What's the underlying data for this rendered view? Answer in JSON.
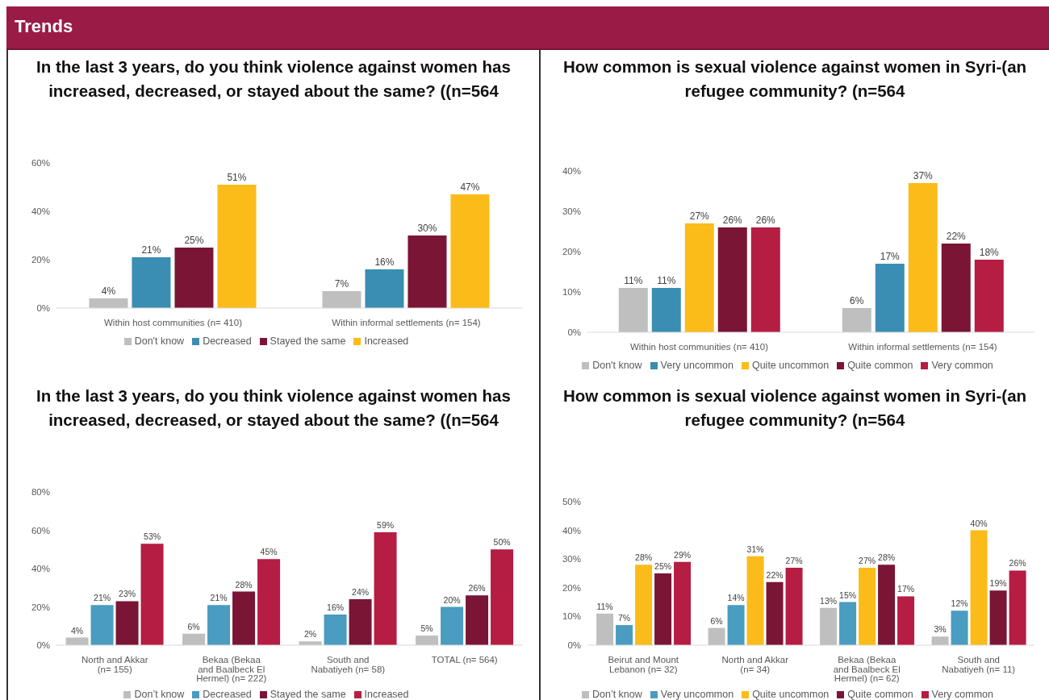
{
  "chart_data": [
    {
      "type": "other",
      "title": "Trends"
    },
    {
      "type": "bar",
      "title": "In the last 3 years, do you think violence against women has increased, decreased, or stayed about the same? ((n=564",
      "categories": [
        "Within host communities (n= 410)",
        "Within informal settlements (n= 154)"
      ],
      "series": [
        {
          "name": "Don't know",
          "color": "#bfbfbf",
          "values": [
            4,
            7
          ],
          "value_labels": [
            "4%",
            "7%"
          ]
        },
        {
          "name": "Decreased",
          "color": "#3a8db3",
          "values": [
            21,
            16
          ],
          "value_labels": [
            "21%",
            "16%"
          ]
        },
        {
          "name": "Stayed the same",
          "color": "#7b1535",
          "values": [
            25,
            30
          ],
          "value_labels": [
            "25%",
            "30%"
          ]
        },
        {
          "name": "Increased",
          "color": "#fbbc19",
          "values": [
            51,
            47
          ],
          "value_labels": [
            "51%",
            "47%"
          ]
        }
      ],
      "ylim": [
        0,
        60
      ],
      "yticks": [
        {
          "value": 0,
          "label": "0%"
        },
        {
          "value": 20,
          "label": "20%"
        },
        {
          "value": 40,
          "label": "40%"
        },
        {
          "value": 60,
          "label": "60%"
        }
      ],
      "legend": "bottom"
    },
    {
      "type": "bar",
      "title": "How common is sexual violence against women in Syri-(an refugee community? (n=564",
      "categories": [
        "Within host communities (n= 410)",
        "Within informal settlements (n= 154)"
      ],
      "series": [
        {
          "name": "Don't know",
          "color": "#bfbfbf",
          "values": [
            11,
            6
          ],
          "value_labels": [
            "11%",
            "6%"
          ]
        },
        {
          "name": "Very uncommon",
          "color": "#3a8db3",
          "values": [
            11,
            17
          ],
          "value_labels": [
            "11%",
            "17%"
          ]
        },
        {
          "name": "Quite uncommon",
          "color": "#fbbc19",
          "values": [
            27,
            37
          ],
          "value_labels": [
            "27%",
            "37%"
          ]
        },
        {
          "name": "Quite common",
          "color": "#7b1535",
          "values": [
            26,
            22
          ],
          "value_labels": [
            "26%",
            "22%"
          ]
        },
        {
          "name": "Very common",
          "color": "#b51d42",
          "values": [
            26,
            18
          ],
          "value_labels": [
            "26%",
            "18%"
          ]
        }
      ],
      "ylim": [
        0,
        40
      ],
      "yticks": [
        {
          "value": 0,
          "label": "0%"
        },
        {
          "value": 10,
          "label": "10%"
        },
        {
          "value": 20,
          "label": "20%"
        },
        {
          "value": 30,
          "label": "30%"
        },
        {
          "value": 40,
          "label": "40%"
        }
      ],
      "legend": "bottom"
    },
    {
      "type": "bar",
      "title": "In the last 3 years, do you think violence against women has increased, decreased, or stayed about the same? ((n=564",
      "categories": [
        "North and Akkar (n= 155)",
        "Bekaa (Bekaa and Baalbeck El Hermel) (n= 222)",
        "South and Nabatiyeh (n= 58)",
        "TOTAL (n= 564)"
      ],
      "series": [
        {
          "name": "Don’t know",
          "color": "#bfbfbf",
          "values": [
            4,
            6,
            2,
            5
          ],
          "value_labels": [
            "4%",
            "6%",
            "2%",
            "5%"
          ]
        },
        {
          "name": "Decreased",
          "color": "#4a9cc0",
          "values": [
            21,
            21,
            16,
            20
          ],
          "value_labels": [
            "21%",
            "21%",
            "16%",
            "20%"
          ]
        },
        {
          "name": "Stayed the same",
          "color": "#7b1535",
          "values": [
            23,
            28,
            24,
            26
          ],
          "value_labels": [
            "23%",
            "28%",
            "24%",
            "26%"
          ]
        },
        {
          "name": "Increased",
          "color": "#b51d42",
          "values": [
            53,
            45,
            59,
            50
          ],
          "value_labels": [
            "53%",
            "45%",
            "59%",
            "50%"
          ]
        }
      ],
      "ylim": [
        0,
        80
      ],
      "yticks": [
        {
          "value": 0,
          "label": "0%"
        },
        {
          "value": 20,
          "label": "20%"
        },
        {
          "value": 40,
          "label": "40%"
        },
        {
          "value": 60,
          "label": "60%"
        },
        {
          "value": 80,
          "label": "80%"
        }
      ],
      "legend": "bottom"
    },
    {
      "type": "bar",
      "title": "How common is sexual violence against women in Syri-(an refugee community? (n=564",
      "categories": [
        "Beirut and Mount Lebanon (n= 32)",
        "North and Akkar (n= 34)",
        "Bekaa (Bekaa and Baalbeck El Hermel) (n= 62)",
        "South and Nabatiyeh (n= 11)"
      ],
      "series": [
        {
          "name": "Don’t know",
          "color": "#bfbfbf",
          "values": [
            11,
            6,
            13,
            3
          ],
          "value_labels": [
            "11%",
            "6%",
            "13%",
            "3%"
          ]
        },
        {
          "name": "Very uncommon",
          "color": "#4a9cc0",
          "values": [
            7,
            14,
            15,
            12
          ],
          "value_labels": [
            "7%",
            "14%",
            "15%",
            "12%"
          ]
        },
        {
          "name": "Quite uncommon",
          "color": "#fbbc19",
          "values": [
            28,
            31,
            27,
            40
          ],
          "value_labels": [
            "28%",
            "31%",
            "27%",
            "40%"
          ]
        },
        {
          "name": "Quite common",
          "color": "#7b1535",
          "values": [
            25,
            22,
            28,
            19
          ],
          "value_labels": [
            "25%",
            "22%",
            "28%",
            "19%"
          ]
        },
        {
          "name": "Very common",
          "color": "#b51d42",
          "values": [
            29,
            27,
            17,
            26
          ],
          "value_labels": [
            "29%",
            "27%",
            "17%",
            "26%"
          ]
        }
      ],
      "ylim": [
        0,
        50
      ],
      "yticks": [
        {
          "value": 0,
          "label": "0%"
        },
        {
          "value": 10,
          "label": "10%"
        },
        {
          "value": 20,
          "label": "20%"
        },
        {
          "value": 30,
          "label": "30%"
        },
        {
          "value": 40,
          "label": "40%"
        },
        {
          "value": 50,
          "label": "50%"
        }
      ],
      "legend": "bottom"
    }
  ]
}
